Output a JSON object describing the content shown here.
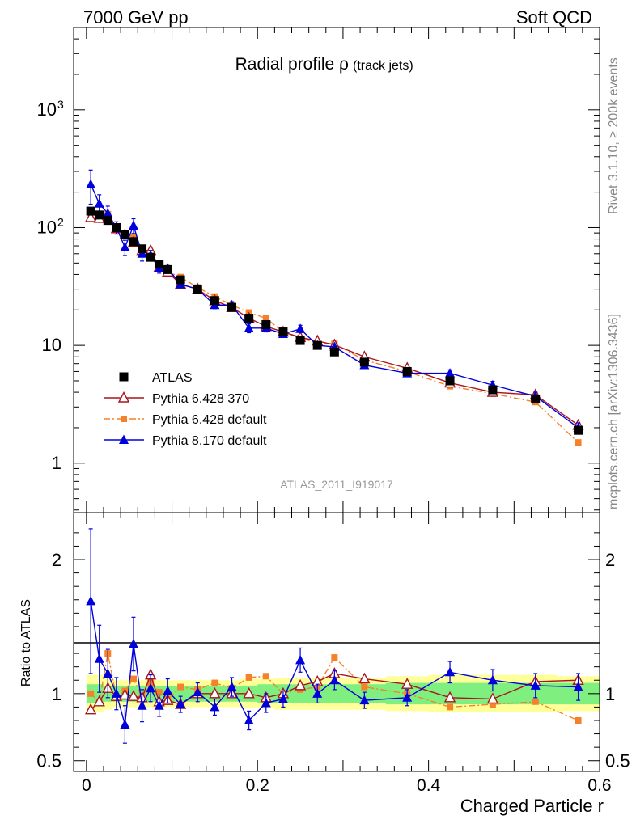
{
  "header": {
    "energy": "7000 GeV pp",
    "process": "Soft QCD"
  },
  "side_labels": {
    "rivet": "Rivet 3.1.10, ≥ 200k events",
    "source": "mcplots.cern.ch [arXiv:1306.3436]"
  },
  "chart_data": [
    {
      "type": "scatter",
      "title": "Radial profile ρ",
      "title_suffix": "(track jets)",
      "analysis_id": "ATLAS_2011_I919017",
      "xlabel": "Charged Particle r",
      "ylabel": "",
      "y_scale": "log",
      "xlim": [
        -0.015,
        0.6
      ],
      "ylim": [
        0.38,
        5000
      ],
      "x_ticks": [
        0,
        0.2,
        0.4,
        0.6
      ],
      "x_tick_labels": [
        "0",
        "0.2",
        "0.4",
        "0.6"
      ],
      "y_tick_labels": [
        {
          "value": 1,
          "label": "1"
        },
        {
          "value": 10,
          "label": "10"
        },
        {
          "value": 100,
          "label": "10",
          "exp": "2"
        },
        {
          "value": 1000,
          "label": "10",
          "exp": "3"
        }
      ],
      "legend_position": "bottom-left",
      "series": [
        {
          "name": "ATLAS",
          "color": "#000000",
          "marker": "square",
          "line": "none",
          "x": [
            0.005,
            0.015,
            0.025,
            0.035,
            0.045,
            0.055,
            0.065,
            0.075,
            0.085,
            0.095,
            0.11,
            0.13,
            0.15,
            0.17,
            0.19,
            0.21,
            0.23,
            0.25,
            0.27,
            0.29,
            0.325,
            0.375,
            0.425,
            0.475,
            0.525,
            0.575
          ],
          "y": [
            138,
            128,
            115,
            100,
            88,
            76,
            66,
            56,
            49,
            44,
            36,
            30,
            24,
            21,
            17,
            15,
            13,
            11,
            10,
            8.8,
            7.2,
            6.0,
            5.0,
            4.2,
            3.5,
            1.9
          ]
        },
        {
          "name": "Pythia 6.428 370",
          "color": "#a8151c",
          "marker": "triangle-open",
          "line": "solid",
          "x": [
            0.005,
            0.015,
            0.025,
            0.035,
            0.045,
            0.055,
            0.065,
            0.075,
            0.085,
            0.095,
            0.11,
            0.13,
            0.15,
            0.17,
            0.19,
            0.21,
            0.23,
            0.25,
            0.27,
            0.29,
            0.325,
            0.375,
            0.425,
            0.475,
            0.525,
            0.575
          ],
          "y": [
            122,
            120,
            120,
            98,
            87,
            75,
            64,
            64,
            46,
            42,
            33,
            30,
            24,
            21,
            17,
            14.5,
            13,
            11.7,
            10.9,
            10.1,
            8.0,
            6.4,
            4.8,
            4.0,
            3.8,
            2.1
          ]
        },
        {
          "name": "Pythia 6.428 default",
          "color": "#f5822a",
          "marker": "square-small",
          "line": "dashdot",
          "x": [
            0.005,
            0.015,
            0.025,
            0.035,
            0.045,
            0.055,
            0.065,
            0.075,
            0.085,
            0.095,
            0.11,
            0.13,
            0.15,
            0.17,
            0.19,
            0.21,
            0.23,
            0.25,
            0.27,
            0.29,
            0.325,
            0.375,
            0.425,
            0.475,
            0.525,
            0.575
          ],
          "y": [
            138,
            120,
            130,
            97,
            90,
            82,
            64,
            60,
            49,
            42,
            38,
            31,
            26,
            22,
            19,
            17,
            13,
            11.5,
            10.5,
            10.3,
            7.5,
            6.0,
            4.5,
            3.9,
            3.3,
            1.5
          ]
        },
        {
          "name": "Pythia 8.170 default",
          "color": "#0000dd",
          "marker": "triangle",
          "line": "solid",
          "x": [
            0.005,
            0.015,
            0.025,
            0.035,
            0.045,
            0.055,
            0.065,
            0.075,
            0.085,
            0.095,
            0.11,
            0.13,
            0.15,
            0.17,
            0.19,
            0.21,
            0.23,
            0.25,
            0.27,
            0.29,
            0.325,
            0.375,
            0.425,
            0.475,
            0.525,
            0.575
          ],
          "y": [
            233,
            160,
            132,
            100,
            68,
            104,
            60,
            58,
            45,
            45,
            33,
            30,
            22,
            22,
            14,
            14,
            12.5,
            13.8,
            10,
            9.7,
            6.8,
            5.8,
            5.8,
            4.6,
            3.7,
            2.0
          ],
          "err": [
            75,
            30,
            20,
            12,
            10,
            15,
            8,
            6,
            4,
            4,
            2,
            2,
            1.5,
            1.5,
            1.2,
            1,
            0.8,
            1,
            0.7,
            0.6,
            0.4,
            0.35,
            0.4,
            0.35,
            0.3,
            0.2
          ]
        }
      ]
    },
    {
      "type": "scatter",
      "xlabel": "Charged Particle r",
      "ylabel": "Ratio to ATLAS",
      "xlim": [
        -0.015,
        0.6
      ],
      "ylim": [
        0.42,
        2.35
      ],
      "y_ticks": [
        0.5,
        1,
        2
      ],
      "y_tick_labels": [
        "0.5",
        "1",
        "2"
      ],
      "bands": {
        "stat_color": "#7ff07f",
        "total_color": "#ffff99",
        "x_edges": [
          0.0,
          0.01,
          0.02,
          0.03,
          0.04,
          0.05,
          0.06,
          0.07,
          0.08,
          0.09,
          0.1,
          0.12,
          0.14,
          0.16,
          0.18,
          0.2,
          0.22,
          0.24,
          0.26,
          0.28,
          0.3,
          0.35,
          0.4,
          0.45,
          0.5,
          0.55,
          0.6
        ],
        "stat_half": [
          0.07,
          0.07,
          0.06,
          0.06,
          0.06,
          0.06,
          0.06,
          0.06,
          0.06,
          0.06,
          0.06,
          0.06,
          0.06,
          0.06,
          0.06,
          0.07,
          0.07,
          0.07,
          0.07,
          0.07,
          0.07,
          0.08,
          0.08,
          0.08,
          0.08,
          0.08
        ],
        "total_half": [
          0.14,
          0.14,
          0.12,
          0.1,
          0.1,
          0.1,
          0.1,
          0.1,
          0.1,
          0.1,
          0.1,
          0.1,
          0.1,
          0.1,
          0.11,
          0.11,
          0.12,
          0.12,
          0.12,
          0.12,
          0.12,
          0.13,
          0.14,
          0.14,
          0.14,
          0.13
        ]
      },
      "series": [
        {
          "name": "Pythia 6.428 370",
          "color": "#a8151c",
          "marker": "triangle-open",
          "line": "solid",
          "x": [
            0.005,
            0.015,
            0.025,
            0.035,
            0.045,
            0.055,
            0.065,
            0.075,
            0.085,
            0.095,
            0.11,
            0.13,
            0.15,
            0.17,
            0.19,
            0.21,
            0.23,
            0.25,
            0.27,
            0.29,
            0.325,
            0.375,
            0.425,
            0.475,
            0.525,
            0.575
          ],
          "y": [
            0.88,
            0.94,
            1.04,
            0.98,
            0.99,
            0.98,
            0.97,
            1.14,
            0.94,
            0.95,
            0.92,
            1.0,
            1.0,
            1.0,
            1.0,
            0.97,
            1.0,
            1.06,
            1.09,
            1.15,
            1.11,
            1.07,
            0.97,
            0.96,
            1.09,
            1.1
          ]
        },
        {
          "name": "Pythia 6.428 default",
          "color": "#f5822a",
          "marker": "square-small",
          "line": "dashdot",
          "x": [
            0.005,
            0.015,
            0.025,
            0.035,
            0.045,
            0.055,
            0.065,
            0.075,
            0.085,
            0.095,
            0.11,
            0.13,
            0.15,
            0.17,
            0.19,
            0.21,
            0.23,
            0.25,
            0.27,
            0.29,
            0.325,
            0.375,
            0.425,
            0.475,
            0.525,
            0.575
          ],
          "y": [
            1.0,
            0.94,
            1.3,
            0.97,
            1.02,
            1.11,
            0.97,
            1.08,
            1.01,
            0.96,
            1.05,
            1.03,
            1.08,
            1.04,
            1.12,
            1.13,
            1.0,
            1.03,
            1.05,
            1.27,
            1.05,
            1.0,
            0.9,
            0.92,
            0.94,
            0.8
          ]
        },
        {
          "name": "Pythia 8.170 default",
          "color": "#0000dd",
          "marker": "triangle",
          "line": "solid",
          "x": [
            0.005,
            0.015,
            0.025,
            0.035,
            0.045,
            0.055,
            0.065,
            0.075,
            0.085,
            0.095,
            0.11,
            0.13,
            0.15,
            0.17,
            0.19,
            0.21,
            0.23,
            0.25,
            0.27,
            0.29,
            0.325,
            0.375,
            0.425,
            0.475,
            0.525,
            0.575
          ],
          "y": [
            1.69,
            1.26,
            1.15,
            1.0,
            0.77,
            1.37,
            0.91,
            1.04,
            0.91,
            1.02,
            0.92,
            1.01,
            0.9,
            1.05,
            0.8,
            0.93,
            0.96,
            1.25,
            1.0,
            1.1,
            0.95,
            0.97,
            1.16,
            1.1,
            1.06,
            1.05
          ],
          "err": [
            0.54,
            0.25,
            0.18,
            0.12,
            0.14,
            0.2,
            0.12,
            0.1,
            0.08,
            0.09,
            0.06,
            0.07,
            0.06,
            0.07,
            0.07,
            0.07,
            0.06,
            0.09,
            0.07,
            0.07,
            0.06,
            0.06,
            0.08,
            0.08,
            0.09,
            0.1
          ]
        }
      ]
    }
  ]
}
